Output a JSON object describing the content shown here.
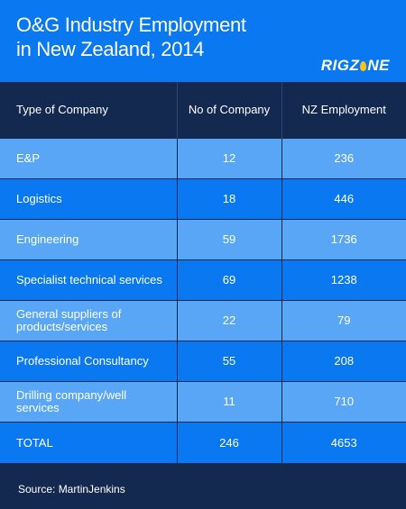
{
  "header": {
    "title_line1": "O&G Industry Employment",
    "title_line2": "in New Zealand, 2014",
    "logo_left": "RIGZ",
    "logo_right": "NE"
  },
  "chart_data": {
    "type": "table",
    "title": "O&G Industry Employment in New Zealand, 2014",
    "columns": [
      "Type of Company",
      "No of Company",
      "NZ Employment"
    ],
    "rows": [
      {
        "type": "E&P",
        "companies": "12",
        "employment": "236"
      },
      {
        "type": "Logistics",
        "companies": "18",
        "employment": "446"
      },
      {
        "type": "Engineering",
        "companies": "59",
        "employment": "1736"
      },
      {
        "type": "Specialist technical services",
        "companies": "69",
        "employment": "1238"
      },
      {
        "type": "General suppliers of products/services",
        "companies": "22",
        "employment": "79"
      },
      {
        "type": "Professional Consultancy",
        "companies": "55",
        "employment": "208"
      },
      {
        "type": "Drilling company/well services",
        "companies": "11",
        "employment": "710"
      },
      {
        "type": "TOTAL",
        "companies": "246",
        "employment": "4653"
      }
    ]
  },
  "footer": {
    "source": "Source: MartinJenkins"
  },
  "colors": {
    "primary_blue": "#0a78f0",
    "light_blue": "#5aa6f6",
    "navy": "#14294f",
    "logo_accent": "#ffc20e"
  }
}
